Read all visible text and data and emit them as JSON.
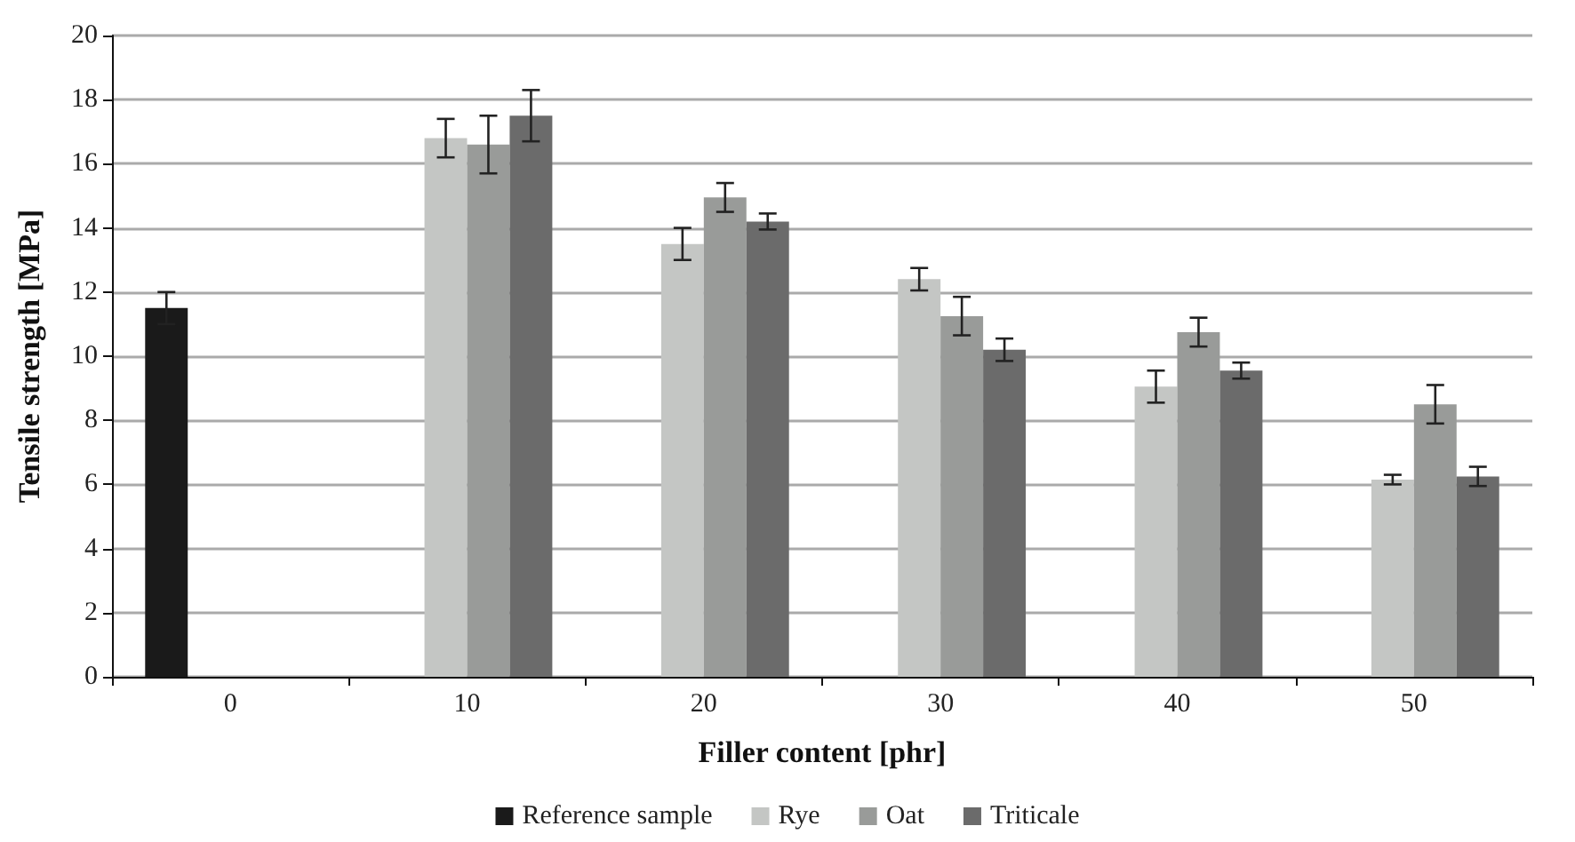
{
  "chart_data": {
    "type": "bar",
    "xlabel": "Filler content [phr]",
    "ylabel": "Tensile strength [MPa]",
    "categories": [
      "0",
      "10",
      "20",
      "30",
      "40",
      "50"
    ],
    "series": [
      {
        "name": "Reference sample",
        "color": "#1a1a1a",
        "values": [
          11.5,
          null,
          null,
          null,
          null,
          null
        ],
        "errors": [
          0.5,
          null,
          null,
          null,
          null,
          null
        ]
      },
      {
        "name": "Rye",
        "color": "#c4c6c4",
        "values": [
          null,
          16.8,
          13.5,
          12.4,
          9.05,
          6.15
        ],
        "errors": [
          null,
          0.6,
          0.5,
          0.35,
          0.5,
          0.15
        ]
      },
      {
        "name": "Oat",
        "color": "#999b99",
        "values": [
          null,
          16.6,
          14.95,
          11.25,
          10.75,
          8.5
        ],
        "errors": [
          null,
          0.9,
          0.45,
          0.6,
          0.45,
          0.6
        ]
      },
      {
        "name": "Triticale",
        "color": "#6b6b6b",
        "values": [
          null,
          17.5,
          14.2,
          10.2,
          9.55,
          6.25
        ],
        "errors": [
          null,
          0.8,
          0.25,
          0.35,
          0.25,
          0.3
        ]
      }
    ],
    "ylim": [
      0,
      20
    ],
    "yticks": [
      0,
      2,
      4,
      6,
      8,
      10,
      12,
      14,
      16,
      18,
      20
    ],
    "grid": "y",
    "legend": "bottom"
  }
}
